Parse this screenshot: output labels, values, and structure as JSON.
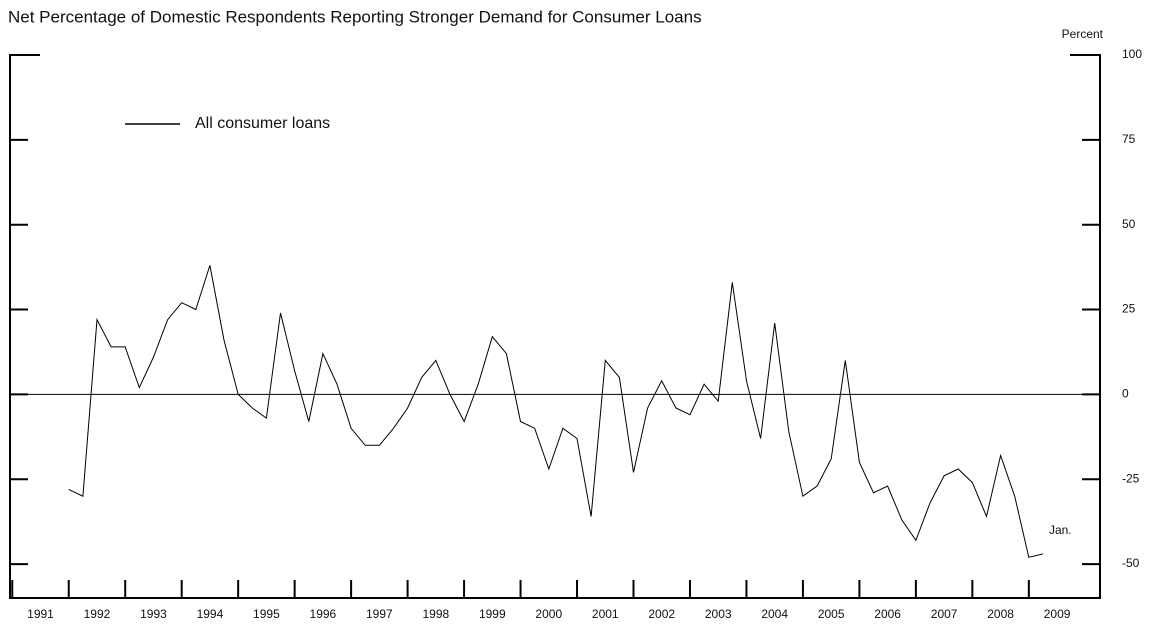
{
  "chart_data": {
    "type": "line",
    "title": "Net Percentage of Domestic Respondents Reporting Stronger Demand for Consumer Loans",
    "y_axis_label": "Percent",
    "annotation": "Jan.",
    "legend_position": "upper left",
    "x": [
      1992,
      1992.25,
      1992.5,
      1992.75,
      1993,
      1993.25,
      1993.5,
      1993.75,
      1994,
      1994.25,
      1994.5,
      1994.75,
      1995,
      1995.25,
      1995.5,
      1995.75,
      1996,
      1996.25,
      1996.5,
      1996.75,
      1997,
      1997.25,
      1997.5,
      1997.75,
      1998,
      1998.25,
      1998.5,
      1998.75,
      1999,
      1999.25,
      1999.5,
      1999.75,
      2000,
      2000.25,
      2000.5,
      2000.75,
      2001,
      2001.25,
      2001.5,
      2001.75,
      2002,
      2002.25,
      2002.5,
      2002.75,
      2003,
      2003.25,
      2003.5,
      2003.75,
      2004,
      2004.25,
      2004.5,
      2004.75,
      2005,
      2005.25,
      2005.5,
      2005.75,
      2006,
      2006.25,
      2006.5,
      2006.75,
      2007,
      2007.25,
      2007.5,
      2007.75,
      2008,
      2008.25,
      2008.5,
      2008.75,
      2009,
      2009.25
    ],
    "series": [
      {
        "name": "All consumer loans",
        "color": "#000000",
        "values": [
          -28,
          -30,
          22,
          14,
          14,
          2,
          11,
          22,
          27,
          25,
          38,
          16,
          0,
          -4,
          -7,
          24,
          7,
          -8,
          12,
          3,
          -10,
          -15,
          -15,
          -10,
          -4,
          5,
          10,
          0,
          -8,
          3,
          17,
          12,
          -8,
          -10,
          -22,
          -10,
          -13,
          -36,
          10,
          5,
          -23,
          -4,
          4,
          -4,
          -6,
          3,
          -2,
          33,
          4,
          -13,
          21,
          -11,
          -30,
          -27,
          -19,
          10,
          -20,
          -29,
          -27,
          -37,
          -43,
          -32,
          -24,
          -22,
          -26,
          -36,
          -18,
          -30,
          -48,
          -47
        ]
      }
    ],
    "xlim": [
      1990.96,
      2010.26
    ],
    "xticks": [
      1991,
      1992,
      1993,
      1994,
      1995,
      1996,
      1997,
      1998,
      1999,
      2000,
      2001,
      2002,
      2003,
      2004,
      2005,
      2006,
      2007,
      2008,
      2009
    ],
    "ylim": [
      -60,
      100
    ],
    "yticks": [
      -50,
      -25,
      0,
      25,
      50,
      75,
      100
    ]
  }
}
